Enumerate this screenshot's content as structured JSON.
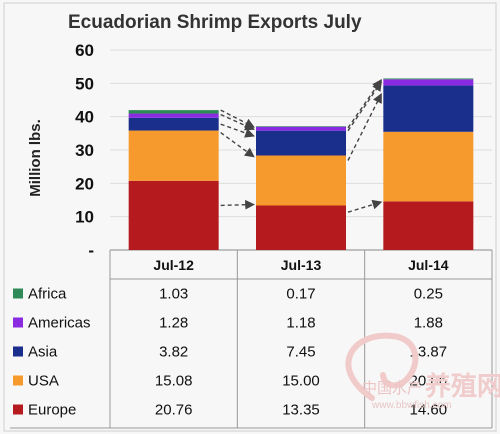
{
  "chart_data": {
    "type": "bar",
    "stacked": true,
    "title": "Ecuadorian Shrimp Exports July",
    "xlabel": "",
    "ylabel": "Million lbs.",
    "ylim": [
      0,
      60
    ],
    "yticks": [
      "-",
      "10",
      "20",
      "30",
      "40",
      "50",
      "60"
    ],
    "categories": [
      "Jul-12",
      "Jul-13",
      "Jul-14"
    ],
    "series": [
      {
        "name": "Europe",
        "color": "#b51a1f",
        "values": [
          20.76,
          13.35,
          14.6
        ],
        "labels": [
          "20.76",
          "13.35",
          "14.60"
        ]
      },
      {
        "name": "USA",
        "color": "#f79a2e",
        "values": [
          15.08,
          15.0,
          20.86
        ],
        "labels": [
          "15.08",
          "15.00",
          "20.86"
        ]
      },
      {
        "name": "Asia",
        "color": "#1a2e8c",
        "values": [
          3.82,
          7.45,
          13.87
        ],
        "labels": [
          "3.82",
          "7.45",
          "13.87"
        ]
      },
      {
        "name": "Americas",
        "color": "#8a2be2",
        "values": [
          1.28,
          1.18,
          1.88
        ],
        "labels": [
          "1.28",
          "1.18",
          "1.88"
        ]
      },
      {
        "name": "Africa",
        "color": "#2e8b57",
        "values": [
          1.03,
          0.17,
          0.25
        ],
        "labels": [
          "1.03",
          "0.17",
          "0.25"
        ]
      }
    ],
    "table_row_order": [
      "Africa",
      "Americas",
      "Asia",
      "USA",
      "Europe"
    ],
    "grid": true,
    "legend": "data table below chart"
  },
  "watermark": {
    "line1": "中国水产",
    "line2": "养殖网",
    "line3": "www.bbwfish.com"
  }
}
